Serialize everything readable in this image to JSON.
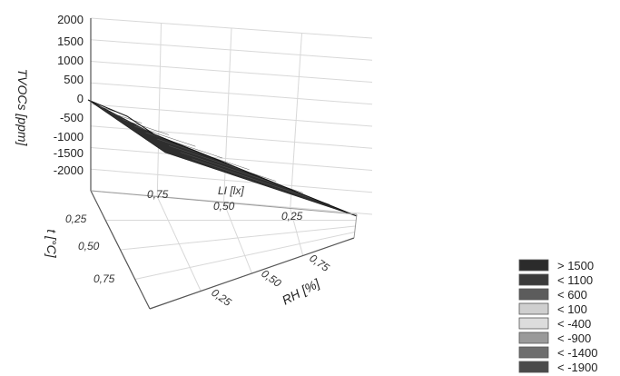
{
  "chart_data": {
    "type": "surface3d",
    "zlabel": "TVOCs [ppm]",
    "z_ticks": [
      "2000",
      "1500",
      "1000",
      "500",
      "0",
      "-500",
      "-1000",
      "-1500",
      "-2000"
    ],
    "z_range": [
      -2000,
      2000
    ],
    "x_axis": {
      "label": "LI [lx]",
      "ticks": [
        "0,75",
        "0,50",
        "0,25"
      ]
    },
    "y_axis": {
      "label": "t [°C]",
      "ticks": [
        "0,25",
        "0,50",
        "0,75"
      ]
    },
    "floor_axis": {
      "label": "RH [%]",
      "ticks": [
        "0,75",
        "0,50",
        "0,25"
      ]
    },
    "surface": {
      "description_corners_z": {
        "back_left": 0,
        "front_right": -2000
      }
    },
    "legend": [
      {
        "label": "> 1500",
        "color": "#2b2b2b"
      },
      {
        "label": "< 1100",
        "color": "#3a3a3a"
      },
      {
        "label": "< 600",
        "color": "#5c5c5c"
      },
      {
        "label": "< 100",
        "color": "#cfcfcf"
      },
      {
        "label": "< -400",
        "color": "#dcdcdc"
      },
      {
        "label": "< -900",
        "color": "#9a9a9a"
      },
      {
        "label": "< -1400",
        "color": "#6e6e6e"
      },
      {
        "label": "< -1900",
        "color": "#4a4a4a"
      }
    ],
    "grid": true,
    "legend_position": "bottom-right"
  }
}
